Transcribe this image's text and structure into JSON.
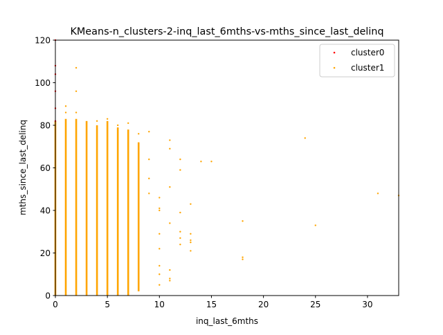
{
  "chart_data": {
    "type": "scatter",
    "title": "KMeans-n_clusters-2-inq_last_6mths-vs-mths_since_last_delinq",
    "xlabel": "inq_last_6mths",
    "ylabel": "mths_since_last_delinq",
    "xlim": [
      0,
      33
    ],
    "ylim": [
      0,
      120
    ],
    "xticks": [
      0,
      5,
      10,
      15,
      20,
      25,
      30
    ],
    "yticks": [
      0,
      20,
      40,
      60,
      80,
      100,
      120
    ],
    "grid": false,
    "legend_position": "top-right",
    "series": [
      {
        "name": "cluster0",
        "color": "#ff0000",
        "points": [
          [
            0,
            120
          ],
          [
            0,
            108
          ],
          [
            0,
            104
          ],
          [
            0,
            96
          ],
          [
            0,
            88
          ],
          [
            0,
            82
          ]
        ]
      },
      {
        "name": "cluster1",
        "color": "#ffa500",
        "points": [
          [
            1,
            89
          ],
          [
            1,
            86
          ],
          [
            2,
            107
          ],
          [
            2,
            96
          ],
          [
            2,
            86
          ],
          [
            4,
            82
          ],
          [
            5,
            83
          ],
          [
            6,
            80
          ],
          [
            7,
            81
          ],
          [
            8,
            76
          ],
          [
            9,
            77
          ],
          [
            9,
            64
          ],
          [
            9,
            55
          ],
          [
            9,
            48
          ],
          [
            10,
            46
          ],
          [
            10,
            41
          ],
          [
            10,
            40
          ],
          [
            10,
            29
          ],
          [
            10,
            22
          ],
          [
            10,
            14
          ],
          [
            10,
            10
          ],
          [
            10,
            5
          ],
          [
            11,
            73
          ],
          [
            11,
            69
          ],
          [
            11,
            51
          ],
          [
            11,
            34
          ],
          [
            11,
            12
          ],
          [
            11,
            8
          ],
          [
            11,
            7
          ],
          [
            12,
            64
          ],
          [
            12,
            59
          ],
          [
            12,
            39
          ],
          [
            12,
            30
          ],
          [
            12,
            27
          ],
          [
            12,
            24
          ],
          [
            13,
            43
          ],
          [
            13,
            29
          ],
          [
            13,
            26
          ],
          [
            13,
            25
          ],
          [
            13,
            21
          ],
          [
            14,
            63
          ],
          [
            15,
            63
          ],
          [
            18,
            35
          ],
          [
            18,
            18
          ],
          [
            18,
            17
          ],
          [
            24,
            74
          ],
          [
            25,
            33
          ],
          [
            31,
            48
          ],
          [
            33,
            47
          ]
        ],
        "columns": [
          {
            "x": 0,
            "range": [
              0,
              82
            ]
          },
          {
            "x": 1,
            "range": [
              0,
              83
            ]
          },
          {
            "x": 2,
            "range": [
              0,
              83
            ]
          },
          {
            "x": 3,
            "range": [
              0,
              82
            ]
          },
          {
            "x": 4,
            "range": [
              0,
              80
            ]
          },
          {
            "x": 5,
            "range": [
              0,
              82
            ]
          },
          {
            "x": 6,
            "range": [
              0,
              79
            ]
          },
          {
            "x": 7,
            "range": [
              0,
              78
            ]
          },
          {
            "x": 8,
            "range": [
              2,
              72
            ]
          }
        ]
      }
    ]
  }
}
